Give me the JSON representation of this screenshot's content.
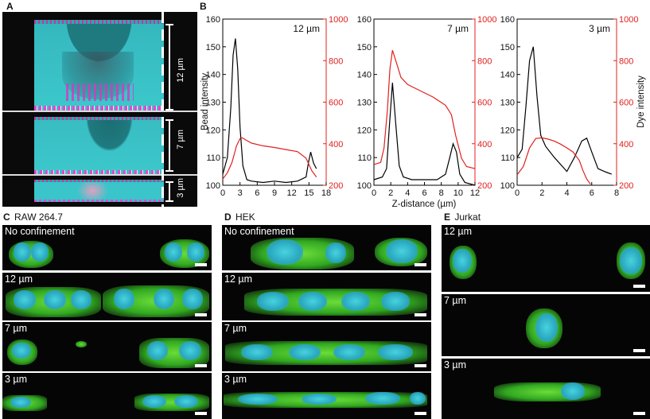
{
  "panel_a": {
    "label": "A",
    "sections": [
      {
        "thickness": "12 µm"
      },
      {
        "thickness": "7 µm"
      },
      {
        "thickness": "3 µm"
      }
    ]
  },
  "panel_b": {
    "label": "B"
  },
  "panel_c": {
    "label": "C",
    "title": "RAW 264.7",
    "rows": [
      "No confinement",
      "12 µm",
      "7 µm",
      "3 µm"
    ]
  },
  "panel_d": {
    "label": "D",
    "title": "HEK",
    "rows": [
      "No confinement",
      "12 µm",
      "7 µm",
      "3 µm"
    ]
  },
  "panel_e": {
    "label": "E",
    "title": "Jurkat",
    "rows": [
      "12 µm",
      "7 µm",
      "3 µm"
    ]
  },
  "colors": {
    "bead": "#000000",
    "dye": "#e0201f",
    "membrane": "#36b524",
    "nucleus": "#3fc7d6"
  },
  "chart_data": [
    {
      "type": "line",
      "title": "12 µm",
      "xlabel": "Z-distance (µm)",
      "ylabel": "Bead intensity",
      "y2label": "Dye intensity",
      "xlim": [
        0,
        18
      ],
      "ylim": [
        100,
        160
      ],
      "y2lim": [
        200,
        1000
      ],
      "xticks": [
        0,
        3,
        6,
        9,
        12,
        15,
        18
      ],
      "yticks": [
        100,
        110,
        120,
        130,
        140,
        150,
        160
      ],
      "y2ticks": [
        200,
        400,
        600,
        800,
        1000
      ],
      "series": [
        {
          "name": "Bead intensity",
          "axis": "left",
          "x": [
            0,
            0.8,
            1.4,
            1.8,
            2.2,
            2.6,
            3.0,
            3.5,
            4.2,
            5,
            7,
            9,
            11,
            13,
            14.5,
            14.9,
            15.3,
            15.8,
            16.3
          ],
          "y": [
            104,
            110,
            128,
            147,
            153,
            142,
            121,
            107,
            102,
            101.5,
            101,
            101.5,
            101,
            101.5,
            103,
            108,
            112,
            108,
            106
          ]
        },
        {
          "name": "Dye intensity",
          "axis": "right",
          "x": [
            0,
            0.8,
            1.6,
            2.4,
            3.0,
            3.4,
            4.0,
            5,
            7,
            9,
            11,
            13,
            14.5,
            15.0,
            15.5,
            16.3
          ],
          "y": [
            230,
            260,
            310,
            390,
            425,
            428,
            418,
            403,
            390,
            382,
            372,
            362,
            330,
            300,
            270,
            240
          ]
        }
      ]
    },
    {
      "type": "line",
      "title": "7 µm",
      "xlabel": "Z-distance (µm)",
      "ylabel": "Bead intensity",
      "y2label": "Dye intensity",
      "xlim": [
        0,
        12
      ],
      "ylim": [
        100,
        160
      ],
      "y2lim": [
        200,
        1000
      ],
      "xticks": [
        0,
        2,
        4,
        6,
        8,
        10,
        12
      ],
      "yticks": [
        100,
        110,
        120,
        130,
        140,
        150,
        160
      ],
      "y2ticks": [
        200,
        400,
        600,
        800,
        1000
      ],
      "series": [
        {
          "name": "Bead intensity",
          "axis": "left",
          "x": [
            0,
            1,
            1.5,
            1.8,
            2.2,
            2.6,
            3.0,
            3.5,
            4.5,
            6,
            7.5,
            8.5,
            9.0,
            9.4,
            9.8,
            10.2,
            10.8,
            12
          ],
          "y": [
            102,
            103,
            106,
            120,
            137,
            122,
            107,
            103,
            102,
            102,
            102,
            104,
            110,
            115,
            112,
            104,
            101,
            100
          ]
        },
        {
          "name": "Dye intensity",
          "axis": "right",
          "x": [
            0,
            0.8,
            1.2,
            1.6,
            1.9,
            2.2,
            2.6,
            3.2,
            4,
            5,
            7,
            8.5,
            9.2,
            9.7,
            10.4,
            11,
            12
          ],
          "y": [
            300,
            310,
            380,
            560,
            760,
            850,
            800,
            720,
            685,
            665,
            625,
            585,
            540,
            440,
            330,
            290,
            280
          ]
        }
      ]
    },
    {
      "type": "line",
      "title": "3 µm",
      "xlabel": "Z-distance (µm)",
      "ylabel": "Bead intensity",
      "y2label": "Dye intensity",
      "xlim": [
        0,
        8
      ],
      "ylim": [
        100,
        160
      ],
      "y2lim": [
        200,
        1000
      ],
      "xticks": [
        0,
        2,
        4,
        6,
        8
      ],
      "yticks": [
        100,
        110,
        120,
        130,
        140,
        150,
        160
      ],
      "y2ticks": [
        200,
        400,
        600,
        800,
        1000
      ],
      "series": [
        {
          "name": "Bead intensity",
          "axis": "left",
          "x": [
            0,
            0.4,
            0.7,
            1.0,
            1.3,
            1.6,
            1.9,
            2.3,
            3.0,
            4.0,
            4.6,
            5.2,
            5.6,
            6.0,
            6.5,
            7.0,
            7.6
          ],
          "y": [
            110,
            113,
            128,
            145,
            150,
            132,
            118,
            114,
            110,
            105,
            110,
            116,
            117,
            112,
            106,
            105,
            104
          ]
        },
        {
          "name": "Dye intensity",
          "axis": "right",
          "x": [
            0,
            0.5,
            1.0,
            1.5,
            2.0,
            2.5,
            3,
            3.5,
            4,
            4.5,
            5,
            5.3,
            5.6,
            5.9
          ],
          "y": [
            250,
            290,
            380,
            425,
            428,
            422,
            412,
            398,
            380,
            360,
            320,
            270,
            230,
            205
          ]
        }
      ]
    }
  ]
}
